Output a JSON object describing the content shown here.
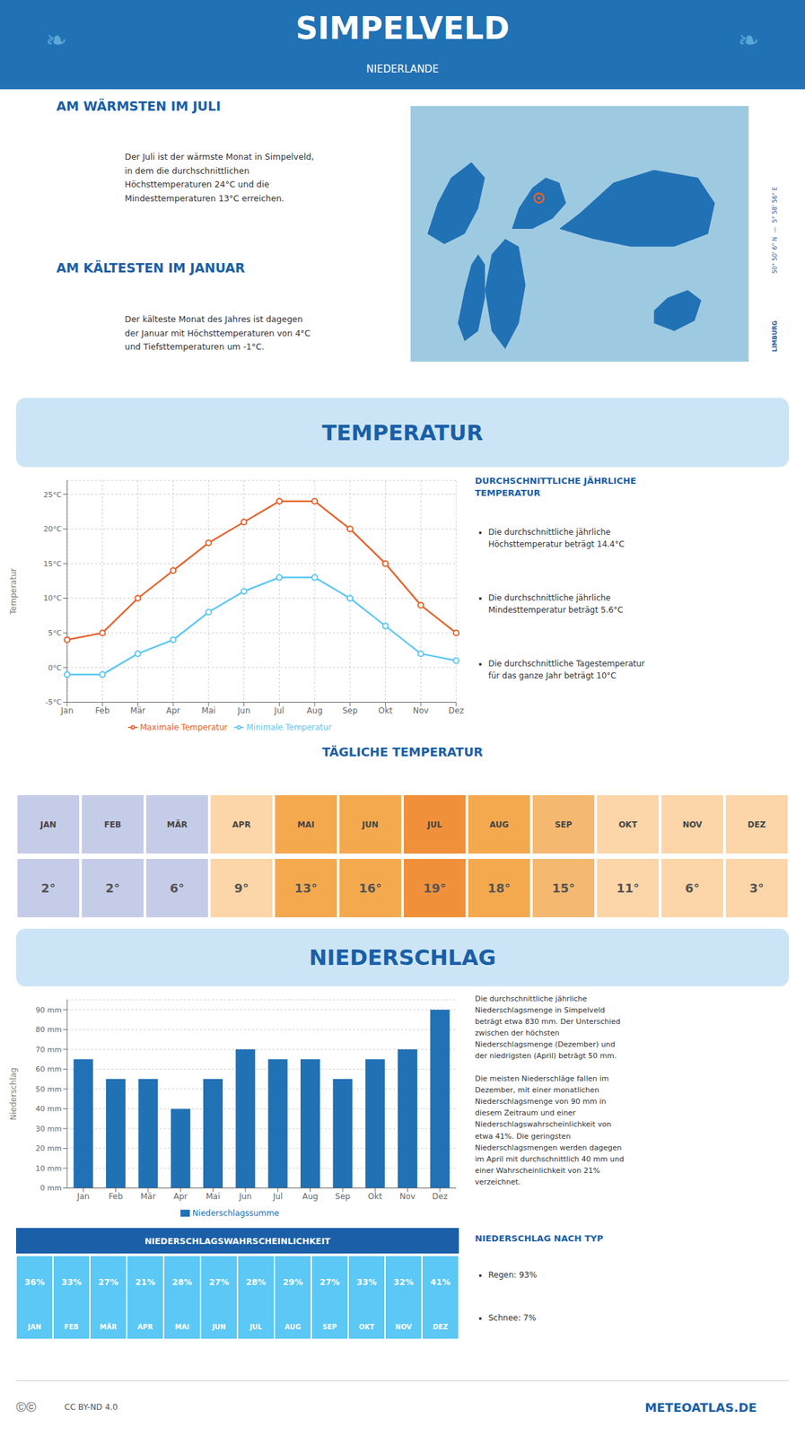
{
  "title": "SIMPELVELD",
  "subtitle": "NIEDERLANDE",
  "annotations": [
    "❧",
    "AM WÄRMSTEN IM JULI",
    "Der Juli ist der wärmste Monat in Simpelveld,\nin dem die durchschnittlichen\nHöchsttemperaturen 24°C und die\nMindesttemperaturen 13°C erreichen.",
    "AM KÄLTESTEN IM JANUAR",
    "Der kälteste Monat des Jahres ist dagegen\nder Januar mit Höchsttemperaturen von 4°C\nund Tiefsttemperaturen um -1°C.",
    "50° 50' 6\" N  —  5° 58' 56\" E",
    "LIMBURG",
    "DURCHSCHNITTLICHE JÄHRLICHE\nTEMPERATUR",
    "Die durchschnittliche jährliche\nHöchsttemperatur beträgt 14.4°C",
    "Die durchschnittliche jährliche\nMindesttemperatur beträgt 5.6°C",
    "Die durchschnittliche Tagestemperatur\nfür das ganze Jahr beträgt 10°C",
    "Die durchschnittliche jährliche\nNiederschlagsmenge in Simpelveld\nbeträgt etwa 830 mm. Der Unterschied\nzwischen der höchsten\nNiederschlagsmenge (Dezember) und\nder niedrigsten (April) beträgt 50 mm.",
    "Die meisten Niederschläge fallen im\nDezember, mit einer monatlichen\nNiederschlagsmenge von 90 mm in\ndiesem Zeitraum und einer\nNiederschlagswahrscheinlichkeit von\netwa 41%. Die geringsten\nNiederschlagsmengen werden dagegen\nim April mit durchschnittlich 40 mm und\neiner Wahrscheinlichkeit von 21%\nverzeichnet.",
    "NIEDERSCHLAG NACH TYP",
    "Regen: 93%",
    "Schnee: 7%",
    "Ⓒⓒ",
    "CC BY-ND 4.0",
    "METEOATLAS.DE"
  ],
  "chart_data": [
    {
      "type": "line",
      "title": "TEMPERATUR",
      "categories": [
        "Jan",
        "Feb",
        "Mär",
        "Apr",
        "Mai",
        "Jun",
        "Jul",
        "Aug",
        "Sep",
        "Okt",
        "Nov",
        "Dez"
      ],
      "series": [
        {
          "name": "Maximale Temperatur",
          "color": "#e8622a",
          "values": [
            4,
            5,
            10,
            14,
            18,
            21,
            24,
            24,
            20,
            15,
            9,
            5
          ]
        },
        {
          "name": "Minimale Temperatur",
          "color": "#5bc8f5",
          "values": [
            -1,
            -1,
            2,
            4,
            8,
            11,
            13,
            13,
            10,
            6,
            2,
            1
          ]
        }
      ],
      "ylabel": "Temperatur",
      "ylim": [
        -5,
        27
      ],
      "yticks": [
        {
          "value": -5,
          "label": "-5°C"
        },
        {
          "value": 0,
          "label": "0°C"
        },
        {
          "value": 5,
          "label": "5°C"
        },
        {
          "value": 10,
          "label": "10°C"
        },
        {
          "value": 15,
          "label": "15°C"
        },
        {
          "value": 20,
          "label": "20°C"
        },
        {
          "value": 25,
          "label": "25°C"
        }
      ],
      "grid": true,
      "legend": "bottom",
      "marker": "circle"
    },
    {
      "type": "table",
      "title": "TÄGLICHE TEMPERATUR",
      "categories": [
        "JAN",
        "FEB",
        "MÄR",
        "APR",
        "MAI",
        "JUN",
        "JUL",
        "AUG",
        "SEP",
        "OKT",
        "NOV",
        "DEZ"
      ],
      "values": [
        2,
        2,
        6,
        9,
        13,
        16,
        19,
        18,
        15,
        11,
        6,
        3
      ],
      "value_labels": [
        "2°",
        "2°",
        "6°",
        "9°",
        "13°",
        "16°",
        "19°",
        "18°",
        "15°",
        "11°",
        "6°",
        "3°"
      ],
      "colors": [
        "#c5cce8",
        "#c5cce8",
        "#c5cce8",
        "#fcd5a8",
        "#f5a94e",
        "#f5a94e",
        "#f0903a",
        "#f5a94e",
        "#f5b870",
        "#fcd5a8",
        "#fcd5a8",
        "#fcd5a8"
      ]
    },
    {
      "type": "bar",
      "title": "NIEDERSCHLAG",
      "categories": [
        "Jan",
        "Feb",
        "Mär",
        "Apr",
        "Mai",
        "Jun",
        "Jul",
        "Aug",
        "Sep",
        "Okt",
        "Nov",
        "Dez"
      ],
      "series": [
        {
          "name": "Niederschlagssumme",
          "color": "#2171b5",
          "values": [
            65,
            55,
            55,
            40,
            55,
            70,
            65,
            65,
            55,
            65,
            70,
            90
          ]
        }
      ],
      "ylabel": "Niederschlag",
      "ylim": [
        0,
        95
      ],
      "yticks": [
        {
          "value": 0,
          "label": "0 mm"
        },
        {
          "value": 10,
          "label": "10 mm"
        },
        {
          "value": 20,
          "label": "20 mm"
        },
        {
          "value": 30,
          "label": "30 mm"
        },
        {
          "value": 40,
          "label": "40 mm"
        },
        {
          "value": 50,
          "label": "50 mm"
        },
        {
          "value": 60,
          "label": "60 mm"
        },
        {
          "value": 70,
          "label": "70 mm"
        },
        {
          "value": 80,
          "label": "80 mm"
        },
        {
          "value": 90,
          "label": "90 mm"
        }
      ],
      "grid": true,
      "legend": "bottom"
    },
    {
      "type": "table",
      "title": "NIEDERSCHLAGSWAHRSCHEINLICHKEIT",
      "categories": [
        "JAN",
        "FEB",
        "MÄR",
        "APR",
        "MAI",
        "JUN",
        "JUL",
        "AUG",
        "SEP",
        "OKT",
        "NOV",
        "DEZ"
      ],
      "values": [
        36,
        33,
        27,
        21,
        28,
        27,
        28,
        29,
        27,
        33,
        32,
        41
      ],
      "value_labels": [
        "36%",
        "33%",
        "27%",
        "21%",
        "28%",
        "27%",
        "28%",
        "29%",
        "27%",
        "33%",
        "32%",
        "41%"
      ],
      "color": "#5bc8f5"
    }
  ]
}
